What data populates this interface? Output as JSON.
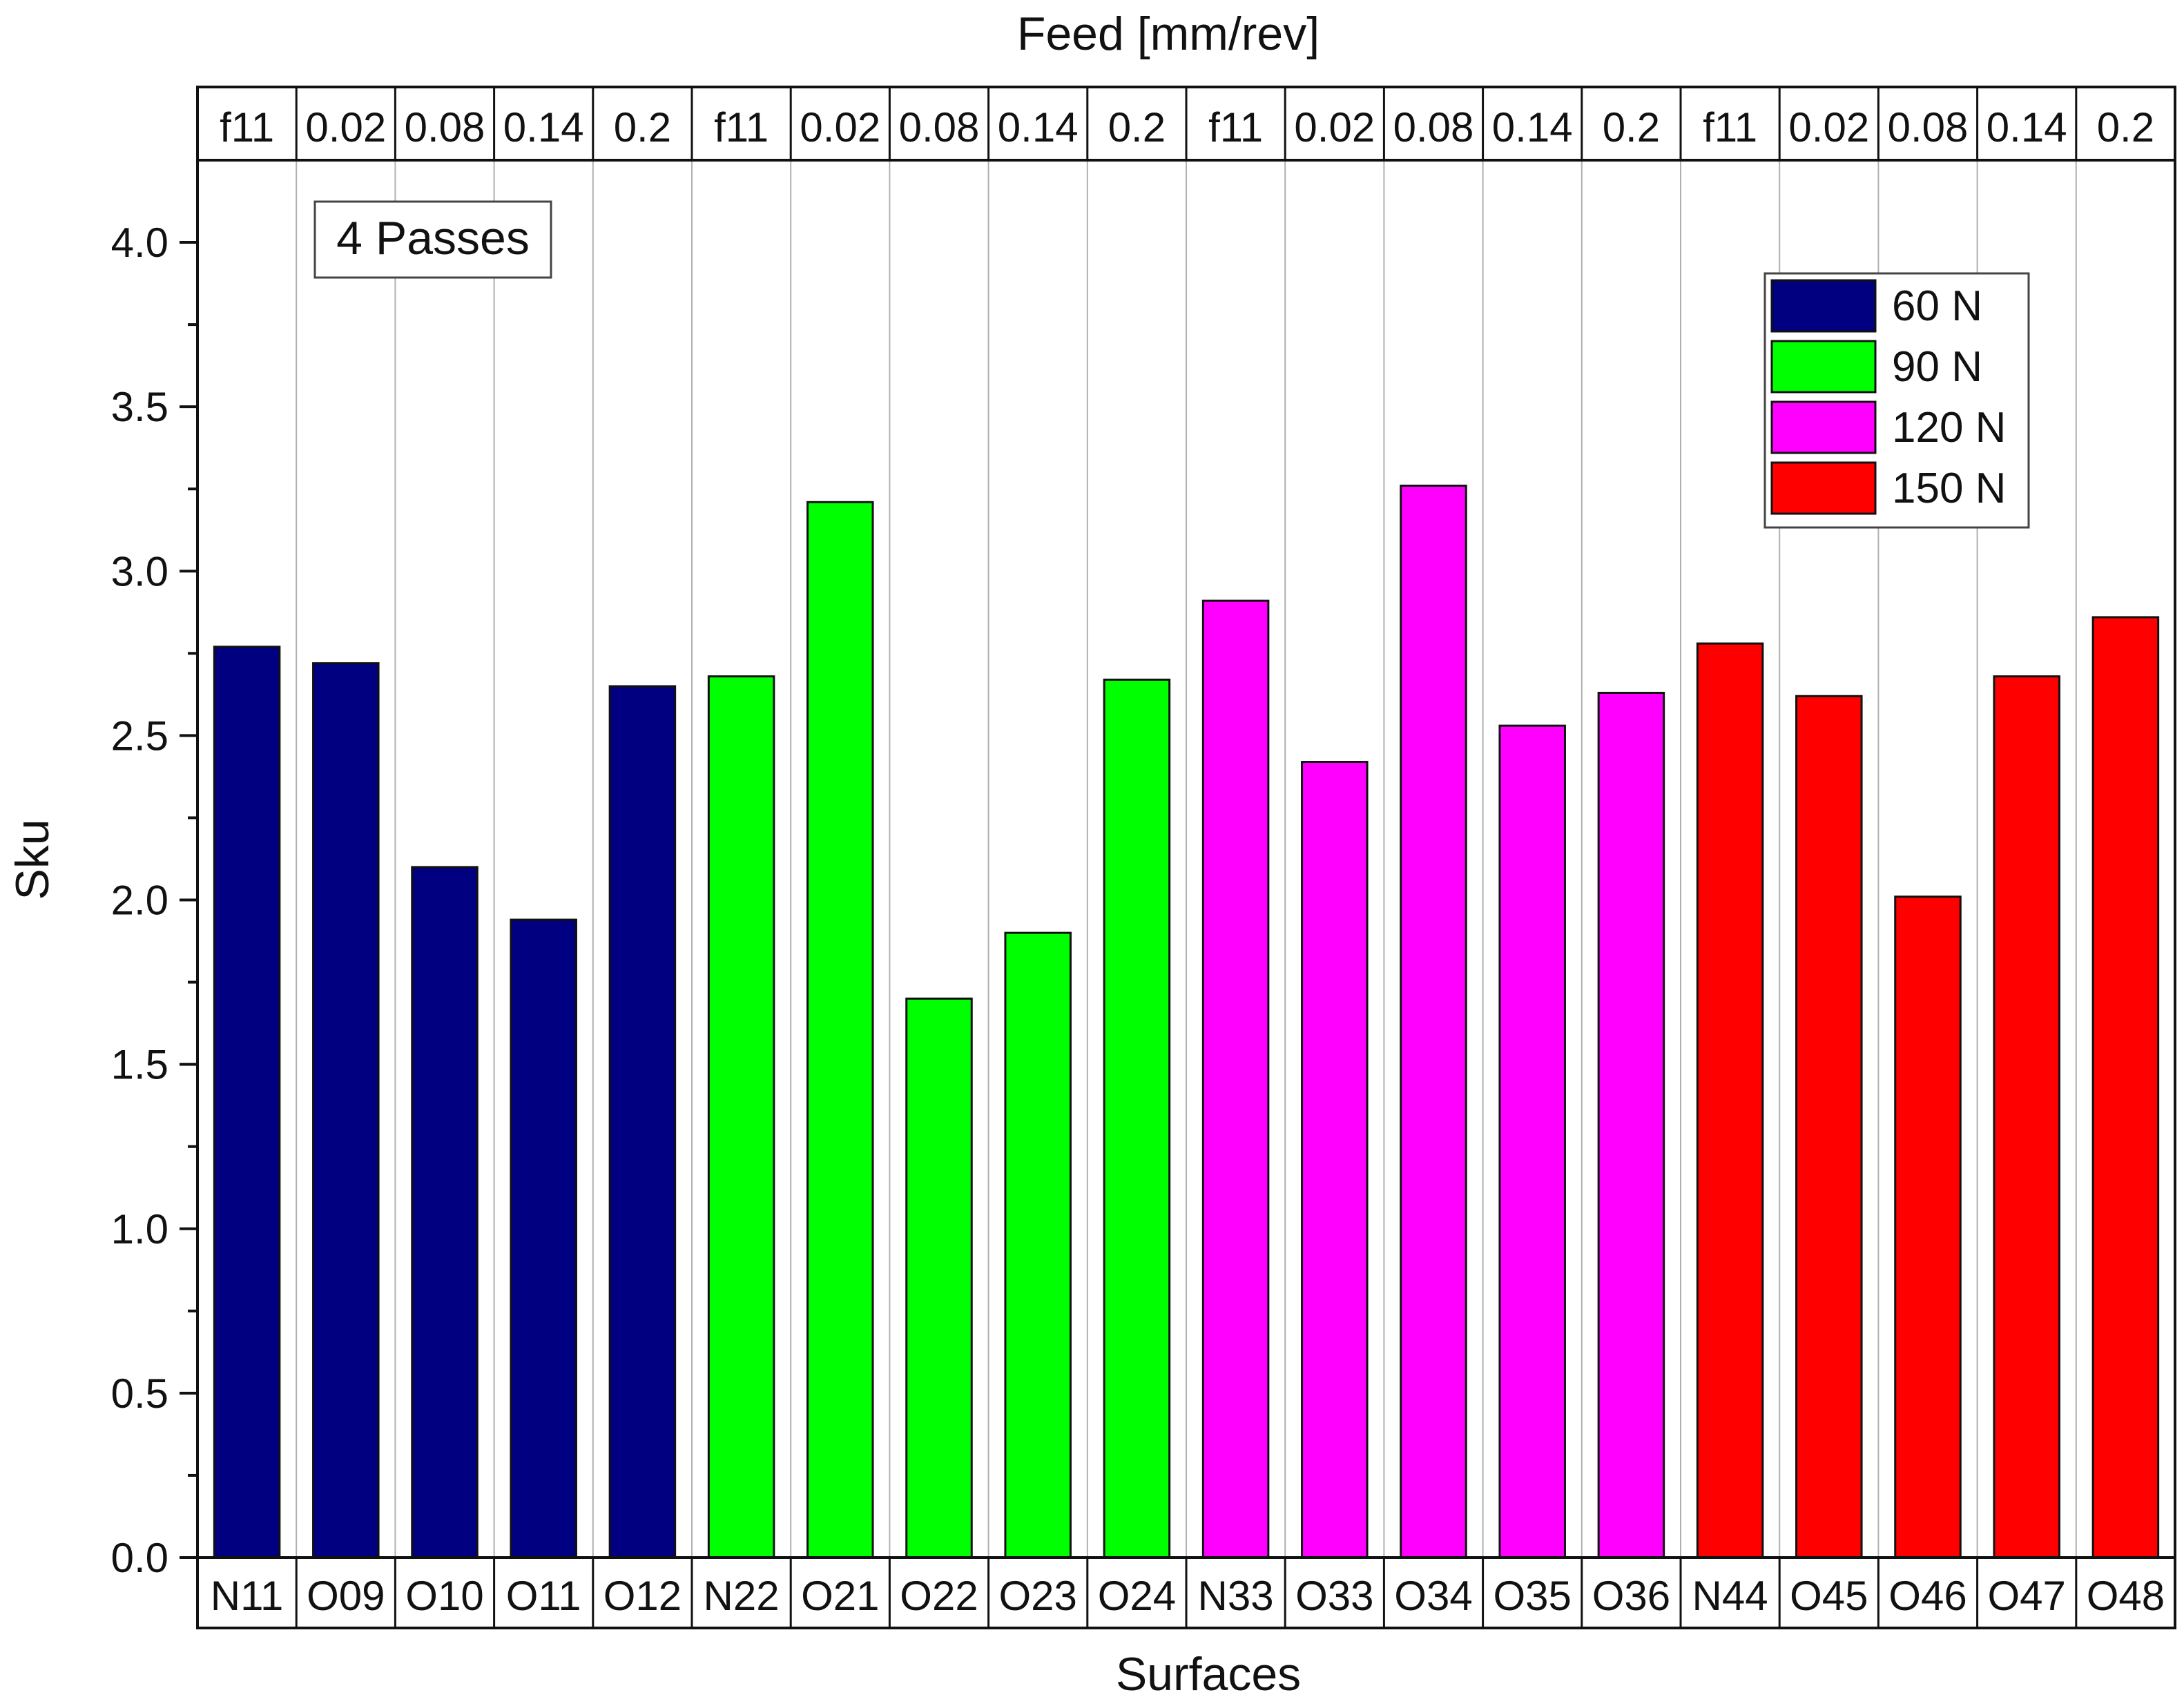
{
  "chart_data": {
    "type": "bar",
    "title": "",
    "xlabel": "Surfaces",
    "ylabel": "Sku",
    "top_axis_label": "Feed [mm/rev]",
    "ylim": [
      0,
      4.25
    ],
    "y_ticks": [
      "0.0",
      "0.5",
      "1.0",
      "1.5",
      "2.0",
      "2.5",
      "3.0",
      "3.5",
      "4.0"
    ],
    "annotation": "4 Passes",
    "categories": [
      "N11",
      "O09",
      "O10",
      "O11",
      "O12",
      "N22",
      "O21",
      "O22",
      "O23",
      "O24",
      "N33",
      "O33",
      "O34",
      "O35",
      "O36",
      "N44",
      "O45",
      "O46",
      "O47",
      "O48"
    ],
    "feed_labels": [
      "f11",
      "0.02",
      "0.08",
      "0.14",
      "0.2",
      "f11",
      "0.02",
      "0.08",
      "0.14",
      "0.2",
      "f11",
      "0.02",
      "0.08",
      "0.14",
      "0.2",
      "f11",
      "0.02",
      "0.08",
      "0.14",
      "0.2"
    ],
    "grid": true,
    "legend_position": "top-right",
    "series": [
      {
        "name": "60 N",
        "color": "#000080",
        "values": [
          2.77,
          2.72,
          2.1,
          1.94,
          2.65,
          null,
          null,
          null,
          null,
          null,
          null,
          null,
          null,
          null,
          null,
          null,
          null,
          null,
          null,
          null
        ]
      },
      {
        "name": "90 N",
        "color": "#00ff00",
        "values": [
          null,
          null,
          null,
          null,
          null,
          2.68,
          3.21,
          1.7,
          1.9,
          2.67,
          null,
          null,
          null,
          null,
          null,
          null,
          null,
          null,
          null,
          null
        ]
      },
      {
        "name": "120 N",
        "color": "#ff00ff",
        "values": [
          null,
          null,
          null,
          null,
          null,
          null,
          null,
          null,
          null,
          null,
          2.91,
          2.42,
          3.26,
          2.53,
          2.63,
          null,
          null,
          null,
          null,
          null
        ]
      },
      {
        "name": "150 N",
        "color": "#ff0000",
        "values": [
          null,
          null,
          null,
          null,
          null,
          null,
          null,
          null,
          null,
          null,
          null,
          null,
          null,
          null,
          null,
          2.78,
          2.62,
          2.01,
          2.68,
          2.86
        ]
      }
    ]
  }
}
